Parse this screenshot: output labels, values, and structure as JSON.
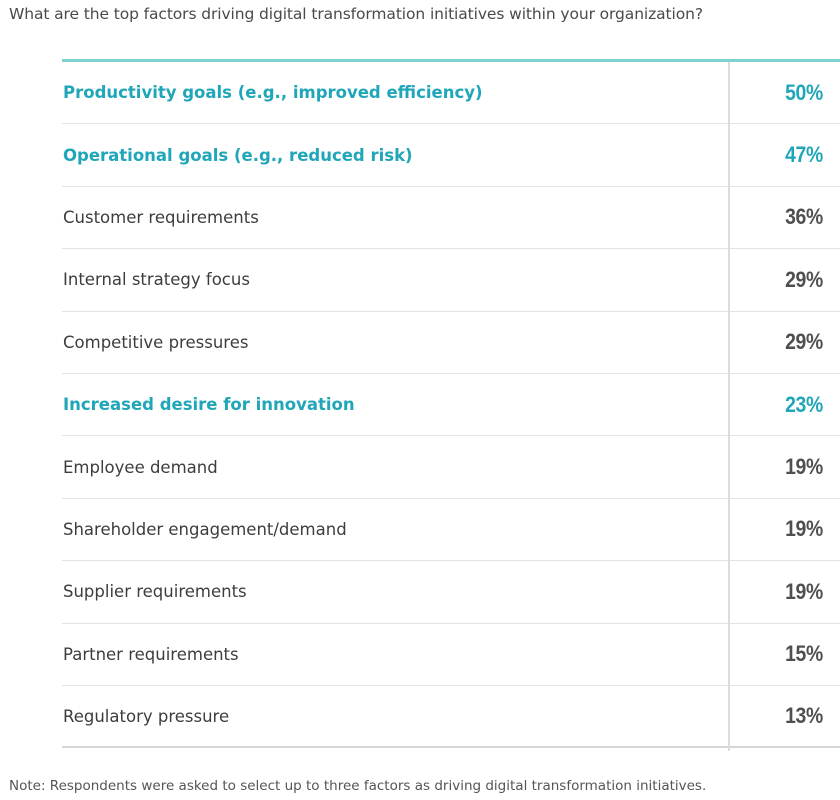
{
  "question": "What are the top factors driving digital transformation initiatives within your organization?",
  "note": "Note: Respondents were asked to select up to three factors as driving digital transformation initiatives.",
  "colors": {
    "highlight": "#1fa6b8",
    "rule_top": "#7fd3cf",
    "text": "#3d3d3d"
  },
  "chart_data": {
    "type": "table",
    "title": "What are the top factors driving digital transformation initiatives within your organization?",
    "unit": "%",
    "rows": [
      {
        "label": "Productivity goals (e.g., improved efficiency)",
        "value": 50,
        "display": "50%",
        "highlight": true
      },
      {
        "label": "Operational goals (e.g., reduced risk)",
        "value": 47,
        "display": "47%",
        "highlight": true
      },
      {
        "label": "Customer requirements",
        "value": 36,
        "display": "36%",
        "highlight": false
      },
      {
        "label": "Internal strategy focus",
        "value": 29,
        "display": "29%",
        "highlight": false
      },
      {
        "label": "Competitive pressures",
        "value": 29,
        "display": "29%",
        "highlight": false
      },
      {
        "label": "Increased desire for innovation",
        "value": 23,
        "display": "23%",
        "highlight": true
      },
      {
        "label": "Employee demand",
        "value": 19,
        "display": "19%",
        "highlight": false
      },
      {
        "label": "Shareholder engagement/demand",
        "value": 19,
        "display": "19%",
        "highlight": false
      },
      {
        "label": "Supplier requirements",
        "value": 19,
        "display": "19%",
        "highlight": false
      },
      {
        "label": "Partner requirements",
        "value": 15,
        "display": "15%",
        "highlight": false
      },
      {
        "label": "Regulatory pressure",
        "value": 13,
        "display": "13%",
        "highlight": false
      }
    ]
  }
}
